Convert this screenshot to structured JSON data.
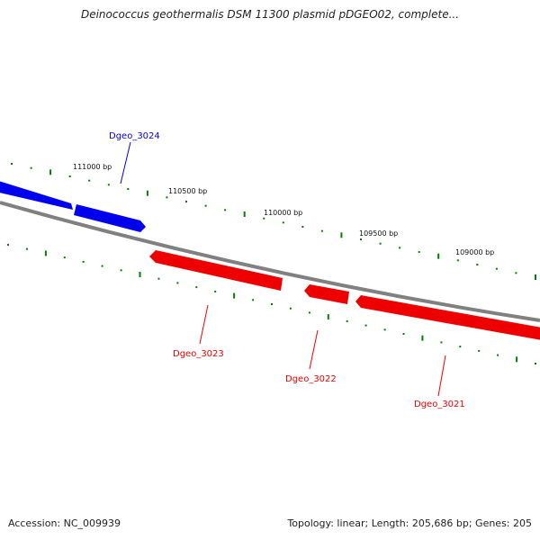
{
  "title": "Deinococcus geothermalis DSM 11300 plasmid pDGEO02, complete...",
  "footer": {
    "accession": "Accession: NC_009939",
    "summary": "Topology: linear; Length: 205,686 bp; Genes: 205"
  },
  "colors": {
    "forward_gene": "#0000ee",
    "reverse_gene": "#ee0000",
    "backbone": "#808080",
    "ticks": "#008000"
  },
  "ruler": {
    "labels": [
      "111000 bp",
      "110500 bp",
      "110000 bp",
      "109500 bp",
      "109000 bp"
    ]
  },
  "genes": [
    {
      "label": "Dgeo_3024",
      "strand": "forward"
    },
    {
      "label": "Dgeo_3023",
      "strand": "reverse"
    },
    {
      "label": "Dgeo_3022",
      "strand": "reverse"
    },
    {
      "label": "Dgeo_3021",
      "strand": "reverse"
    }
  ]
}
